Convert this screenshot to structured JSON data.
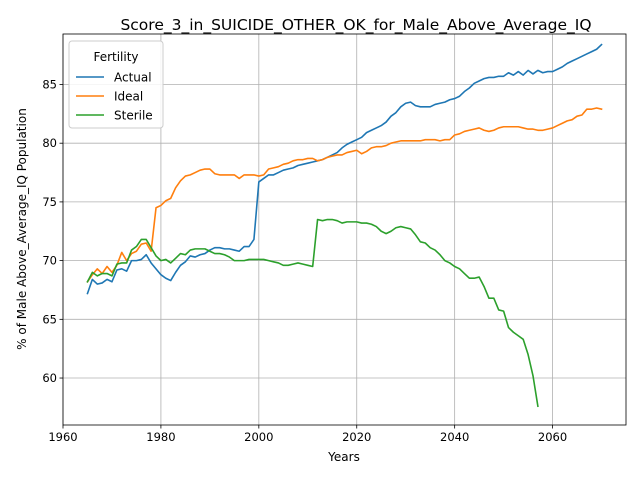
{
  "chart_data": {
    "type": "line",
    "title": "Score_3_in_SUICIDE_OTHER_OK_for_Male_Above_Average_IQ",
    "xlabel": "Years",
    "ylabel": "% of Male Above_Average_IQ Population",
    "xlim": [
      1960,
      2075
    ],
    "ylim": [
      56,
      89.3
    ],
    "xticks": [
      1960,
      1980,
      2000,
      2020,
      2040,
      2060
    ],
    "yticks": [
      60,
      65,
      70,
      75,
      80,
      85
    ],
    "grid": true,
    "legend": {
      "title": "Fertility",
      "placement": "top-left"
    },
    "series": [
      {
        "name": "Actual",
        "color": "#1f77b4",
        "x": [
          1965,
          1966,
          1967,
          1968,
          1969,
          1970,
          1971,
          1972,
          1973,
          1974,
          1975,
          1976,
          1977,
          1978,
          1979,
          1980,
          1981,
          1982,
          1983,
          1984,
          1985,
          1986,
          1987,
          1988,
          1989,
          1990,
          1991,
          1992,
          1993,
          1994,
          1995,
          1996,
          1997,
          1998,
          1999,
          2000,
          2001,
          2002,
          2003,
          2004,
          2005,
          2006,
          2007,
          2008,
          2009,
          2010,
          2011,
          2012,
          2013,
          2014,
          2015,
          2016,
          2017,
          2018,
          2019,
          2020,
          2021,
          2022,
          2023,
          2024,
          2025,
          2026,
          2027,
          2028,
          2029,
          2030,
          2031,
          2032,
          2033,
          2034,
          2035,
          2036,
          2037,
          2038,
          2039,
          2040,
          2041,
          2042,
          2043,
          2044,
          2045,
          2046,
          2047,
          2048,
          2049,
          2050,
          2051,
          2052,
          2053,
          2054,
          2055,
          2056,
          2057,
          2058,
          2059,
          2060,
          2061,
          2062,
          2063,
          2064,
          2065,
          2066,
          2067,
          2068,
          2069,
          2070
        ],
        "y": [
          67.2,
          68.4,
          68.0,
          68.1,
          68.4,
          68.2,
          69.2,
          69.3,
          69.1,
          70.0,
          70.0,
          70.1,
          70.5,
          69.8,
          69.3,
          68.8,
          68.5,
          68.3,
          69.0,
          69.6,
          69.9,
          70.4,
          70.3,
          70.5,
          70.6,
          70.9,
          71.1,
          71.1,
          71.0,
          71.0,
          70.9,
          70.8,
          71.2,
          71.2,
          71.8,
          76.7,
          77.0,
          77.3,
          77.3,
          77.5,
          77.7,
          77.8,
          77.9,
          78.1,
          78.2,
          78.3,
          78.4,
          78.5,
          78.6,
          78.8,
          79.0,
          79.2,
          79.6,
          79.9,
          80.1,
          80.3,
          80.5,
          80.9,
          81.1,
          81.3,
          81.5,
          81.8,
          82.3,
          82.6,
          83.1,
          83.4,
          83.5,
          83.2,
          83.1,
          83.1,
          83.1,
          83.3,
          83.4,
          83.5,
          83.7,
          83.8,
          84.0,
          84.4,
          84.7,
          85.1,
          85.3,
          85.5,
          85.6,
          85.6,
          85.7,
          85.7,
          86.0,
          85.8,
          86.1,
          85.8,
          86.2,
          85.9,
          86.2,
          86.0,
          86.1,
          86.1,
          86.3,
          86.5,
          86.8,
          87.0,
          87.2,
          87.4,
          87.6,
          87.8,
          88.0,
          88.4
        ]
      },
      {
        "name": "Ideal",
        "color": "#ff7f0e",
        "x": [
          1965,
          1966,
          1967,
          1968,
          1969,
          1970,
          1971,
          1972,
          1973,
          1974,
          1975,
          1976,
          1977,
          1978,
          1979,
          1980,
          1981,
          1982,
          1983,
          1984,
          1985,
          1986,
          1987,
          1988,
          1989,
          1990,
          1991,
          1992,
          1993,
          1994,
          1995,
          1996,
          1997,
          1998,
          1999,
          2000,
          2001,
          2002,
          2003,
          2004,
          2005,
          2006,
          2007,
          2008,
          2009,
          2010,
          2011,
          2012,
          2013,
          2014,
          2015,
          2016,
          2017,
          2018,
          2019,
          2020,
          2021,
          2022,
          2023,
          2024,
          2025,
          2026,
          2027,
          2028,
          2029,
          2030,
          2031,
          2032,
          2033,
          2034,
          2035,
          2036,
          2037,
          2038,
          2039,
          2040,
          2041,
          2042,
          2043,
          2044,
          2045,
          2046,
          2047,
          2048,
          2049,
          2050,
          2051,
          2052,
          2053,
          2054,
          2055,
          2056,
          2057,
          2058,
          2059,
          2060,
          2061,
          2062,
          2063,
          2064,
          2065,
          2066,
          2067,
          2068,
          2069,
          2070
        ],
        "y": [
          68.2,
          68.8,
          69.3,
          68.9,
          69.5,
          69.0,
          69.6,
          70.7,
          70.0,
          70.6,
          70.8,
          71.4,
          71.5,
          70.8,
          74.5,
          74.7,
          75.1,
          75.3,
          76.2,
          76.8,
          77.2,
          77.3,
          77.5,
          77.7,
          77.8,
          77.8,
          77.4,
          77.3,
          77.3,
          77.3,
          77.3,
          77.0,
          77.3,
          77.3,
          77.3,
          77.2,
          77.3,
          77.8,
          77.9,
          78.0,
          78.2,
          78.3,
          78.5,
          78.6,
          78.6,
          78.7,
          78.7,
          78.5,
          78.6,
          78.8,
          78.9,
          79.0,
          79.0,
          79.2,
          79.3,
          79.4,
          79.1,
          79.3,
          79.6,
          79.7,
          79.7,
          79.8,
          80.0,
          80.1,
          80.2,
          80.2,
          80.2,
          80.2,
          80.2,
          80.3,
          80.3,
          80.3,
          80.2,
          80.3,
          80.3,
          80.7,
          80.8,
          81.0,
          81.1,
          81.2,
          81.3,
          81.1,
          81.0,
          81.1,
          81.3,
          81.4,
          81.4,
          81.4,
          81.4,
          81.3,
          81.2,
          81.2,
          81.1,
          81.1,
          81.2,
          81.3,
          81.5,
          81.7,
          81.9,
          82.0,
          82.3,
          82.4,
          82.9,
          82.9,
          83.0,
          82.9
        ]
      },
      {
        "name": "Sterile",
        "color": "#2ca02c",
        "x": [
          1965,
          1966,
          1967,
          1968,
          1969,
          1970,
          1971,
          1972,
          1973,
          1974,
          1975,
          1976,
          1977,
          1978,
          1979,
          1980,
          1981,
          1982,
          1983,
          1984,
          1985,
          1986,
          1987,
          1988,
          1989,
          1990,
          1991,
          1992,
          1993,
          1994,
          1995,
          1996,
          1997,
          1998,
          1999,
          2000,
          2001,
          2002,
          2003,
          2004,
          2005,
          2006,
          2007,
          2008,
          2009,
          2010,
          2011,
          2012,
          2013,
          2014,
          2015,
          2016,
          2017,
          2018,
          2019,
          2020,
          2021,
          2022,
          2023,
          2024,
          2025,
          2026,
          2027,
          2028,
          2029,
          2030,
          2031,
          2032,
          2033,
          2034,
          2035,
          2036,
          2037,
          2038,
          2039,
          2040,
          2041,
          2042,
          2043,
          2044,
          2045,
          2046,
          2047,
          2048,
          2049,
          2050,
          2051,
          2052,
          2053,
          2054,
          2055,
          2056,
          2057
        ],
        "y": [
          68.2,
          69.0,
          68.7,
          68.9,
          68.9,
          68.7,
          69.7,
          69.8,
          69.8,
          70.9,
          71.2,
          71.8,
          71.8,
          71.1,
          70.4,
          70.0,
          70.1,
          69.8,
          70.2,
          70.6,
          70.5,
          70.9,
          71.0,
          71.0,
          71.0,
          70.8,
          70.6,
          70.6,
          70.5,
          70.3,
          70.0,
          70.0,
          70.0,
          70.1,
          70.1,
          70.1,
          70.1,
          70.0,
          69.9,
          69.8,
          69.6,
          69.6,
          69.7,
          69.8,
          69.7,
          69.6,
          69.5,
          73.5,
          73.4,
          73.5,
          73.5,
          73.4,
          73.2,
          73.3,
          73.3,
          73.3,
          73.2,
          73.2,
          73.1,
          72.9,
          72.5,
          72.3,
          72.5,
          72.8,
          72.9,
          72.8,
          72.7,
          72.2,
          71.6,
          71.5,
          71.1,
          70.9,
          70.5,
          70.0,
          69.8,
          69.5,
          69.3,
          68.9,
          68.5,
          68.5,
          68.6,
          67.8,
          66.8,
          66.8,
          65.8,
          65.7,
          64.3,
          63.9,
          63.6,
          63.3,
          62.0,
          60.2,
          57.6
        ]
      }
    ]
  }
}
